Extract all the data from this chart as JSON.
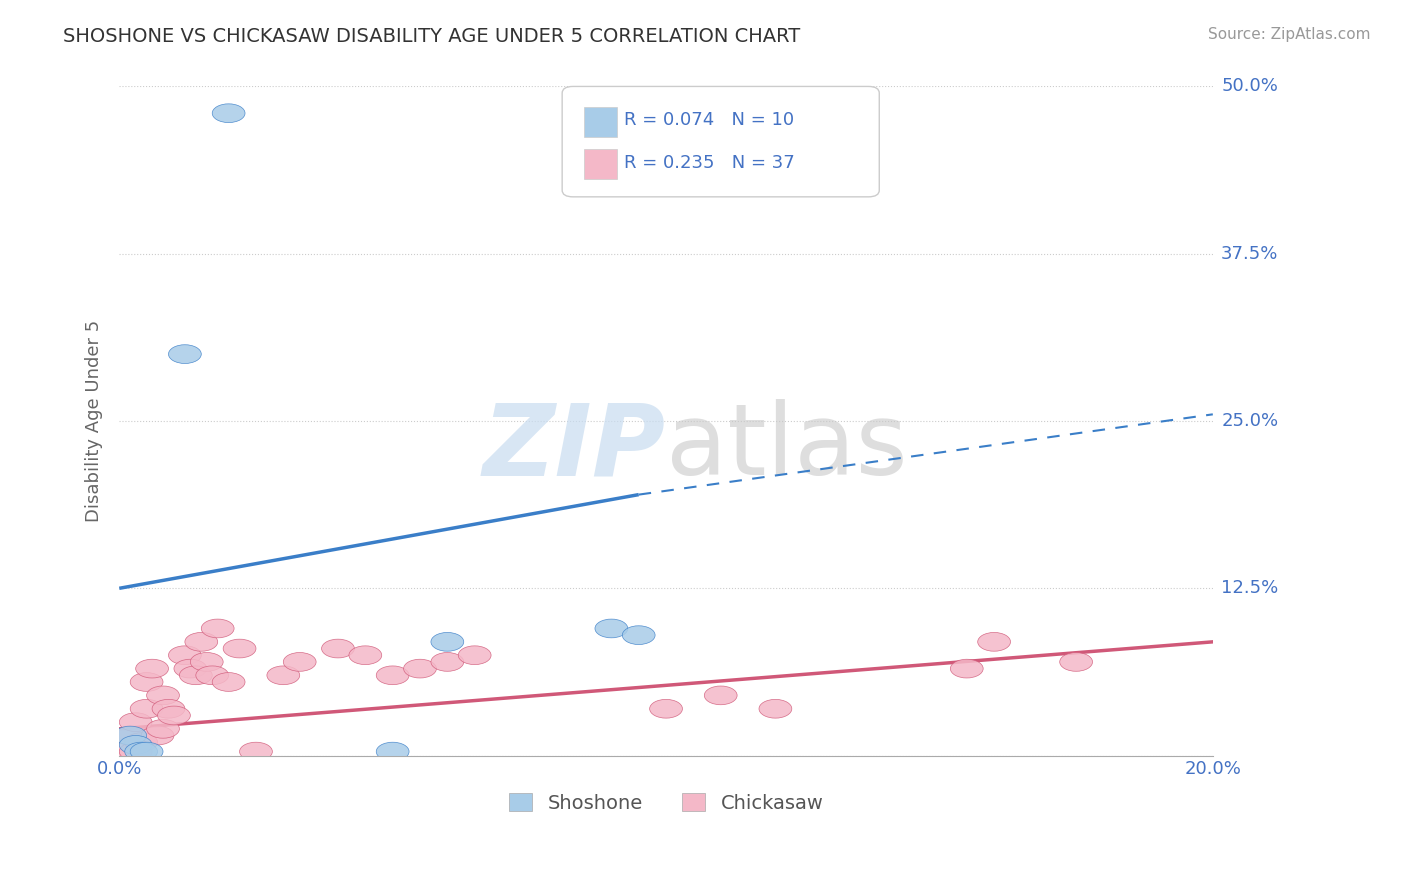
{
  "title": "SHOSHONE VS CHICKASAW DISABILITY AGE UNDER 5 CORRELATION CHART",
  "source_text": "Source: ZipAtlas.com",
  "ylabel": "Disability Age Under 5",
  "xlim": [
    0.0,
    0.2
  ],
  "ylim": [
    0.0,
    0.5
  ],
  "ytick_values": [
    0.0,
    0.125,
    0.25,
    0.375,
    0.5
  ],
  "ytick_labels": [
    "",
    "12.5%",
    "25.0%",
    "37.5%",
    "50.0%"
  ],
  "shoshone_R": 0.074,
  "shoshone_N": 10,
  "chickasaw_R": 0.235,
  "chickasaw_N": 37,
  "shoshone_color": "#A8CCE8",
  "chickasaw_color": "#F4B8C8",
  "shoshone_line_color": "#3A7EC8",
  "chickasaw_line_color": "#D05878",
  "shoshone_scatter_x": [
    0.002,
    0.003,
    0.004,
    0.005,
    0.012,
    0.02,
    0.05,
    0.06,
    0.09,
    0.095
  ],
  "shoshone_scatter_y": [
    0.015,
    0.008,
    0.003,
    0.003,
    0.3,
    0.48,
    0.003,
    0.085,
    0.095,
    0.09
  ],
  "chickasaw_scatter_x": [
    0.001,
    0.002,
    0.003,
    0.003,
    0.004,
    0.005,
    0.005,
    0.006,
    0.007,
    0.008,
    0.008,
    0.009,
    0.01,
    0.012,
    0.013,
    0.014,
    0.015,
    0.016,
    0.017,
    0.018,
    0.02,
    0.022,
    0.025,
    0.03,
    0.033,
    0.04,
    0.045,
    0.05,
    0.055,
    0.06,
    0.065,
    0.1,
    0.11,
    0.12,
    0.155,
    0.16,
    0.175
  ],
  "chickasaw_scatter_y": [
    0.003,
    0.015,
    0.025,
    0.003,
    0.01,
    0.035,
    0.055,
    0.065,
    0.015,
    0.045,
    0.02,
    0.035,
    0.03,
    0.075,
    0.065,
    0.06,
    0.085,
    0.07,
    0.06,
    0.095,
    0.055,
    0.08,
    0.003,
    0.06,
    0.07,
    0.08,
    0.075,
    0.06,
    0.065,
    0.07,
    0.075,
    0.035,
    0.045,
    0.035,
    0.065,
    0.085,
    0.07
  ],
  "shoshone_line_x0": 0.0,
  "shoshone_line_y0": 0.125,
  "shoshone_line_x1": 0.095,
  "shoshone_line_y1": 0.195,
  "shoshone_line_x2": 0.2,
  "shoshone_line_y2": 0.255,
  "chickasaw_line_x0": 0.0,
  "chickasaw_line_y0": 0.02,
  "chickasaw_line_x1": 0.2,
  "chickasaw_line_y1": 0.085,
  "background_color": "#FFFFFF",
  "grid_color": "#CCCCCC",
  "title_color": "#333333",
  "axis_label_color": "#666666",
  "tick_color": "#4472C4",
  "legend_r_color": "#4472C4"
}
